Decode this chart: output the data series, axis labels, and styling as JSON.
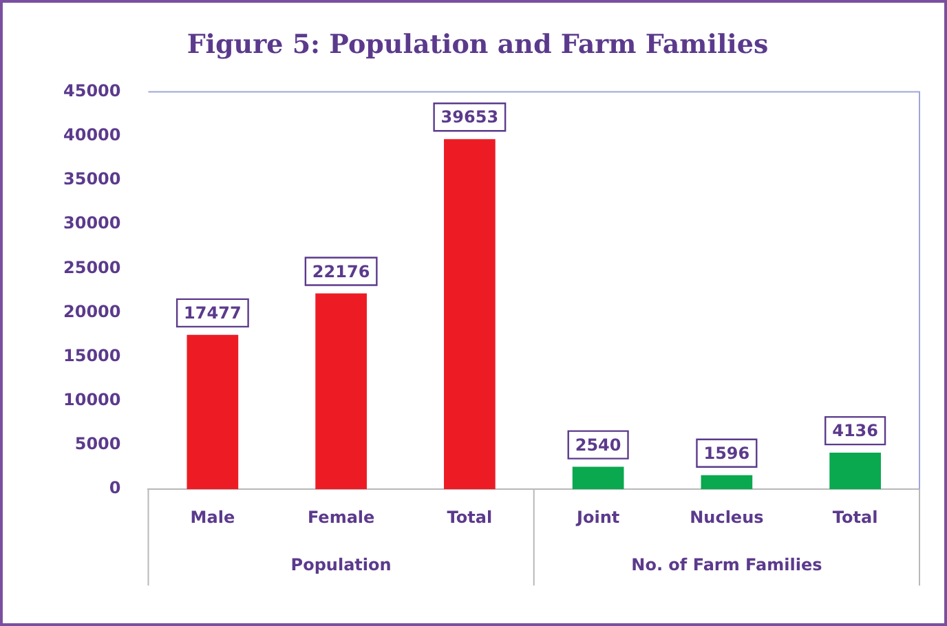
{
  "chart_data": {
    "type": "bar",
    "title": "Figure 5: Population and Farm Families",
    "categories": [
      "Male",
      "Female",
      "Total",
      "Joint",
      "Nucleus",
      "Total"
    ],
    "values": [
      17477,
      22176,
      39653,
      2540,
      1596,
      4136
    ],
    "colors": [
      "#ed1c24",
      "#ed1c24",
      "#ed1c24",
      "#0aa84f",
      "#0aa84f",
      "#0aa84f"
    ],
    "annotations": [
      "Population",
      "No. of Farm Families"
    ],
    "ylim": [
      0,
      45000
    ],
    "yticks": [
      0,
      5000,
      10000,
      15000,
      20000,
      25000,
      30000,
      35000,
      40000,
      45000
    ],
    "data_labels": true,
    "grid": false,
    "legend": false
  }
}
